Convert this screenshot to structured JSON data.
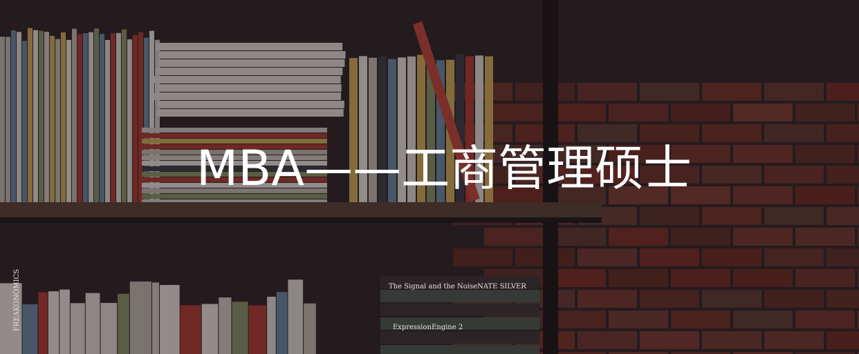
{
  "banner": {
    "title": "MBA——工商管理硕士",
    "spines": [
      "The Signal and the Noise",
      "NATE SILVER",
      "ExpressionEngine 2",
      "FREAKONOMICS"
    ]
  }
}
